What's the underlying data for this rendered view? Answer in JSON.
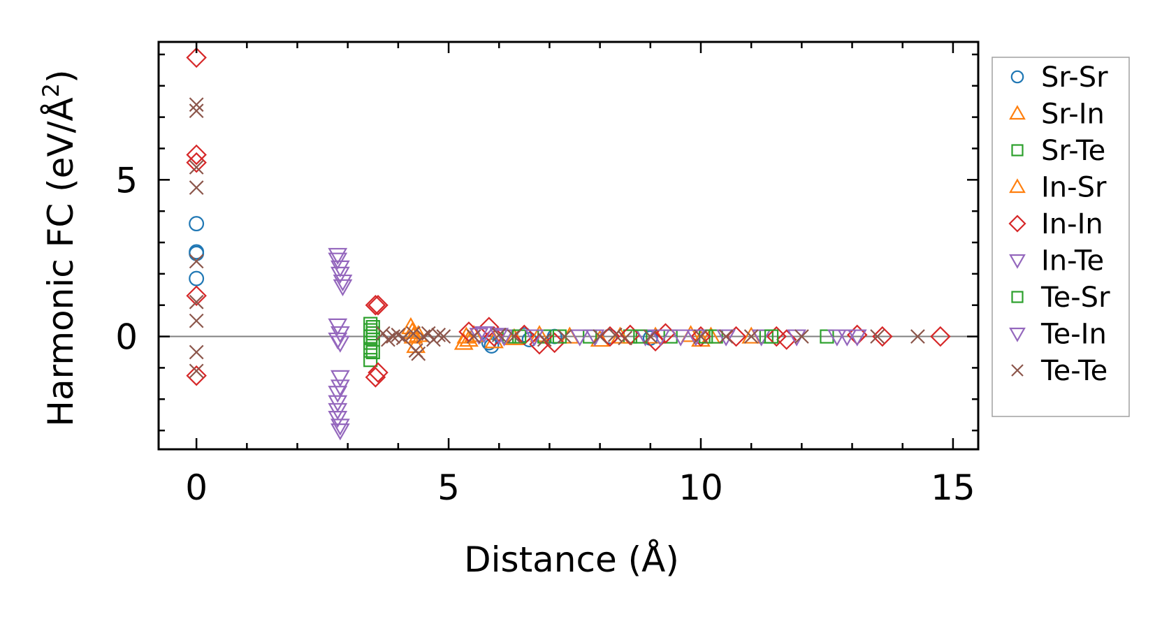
{
  "chart_data": {
    "type": "scatter",
    "xlabel": "Distance (Å)",
    "ylabel_main": "Harmonic FC (eV/Å",
    "ylabel_sup": "2",
    "ylabel_end": ")",
    "xlim": [
      -0.75,
      15.5
    ],
    "ylim": [
      -3.6,
      9.4
    ],
    "xticks": [
      0,
      5,
      10,
      15
    ],
    "xtick_labels": [
      "0",
      "5",
      "10",
      "15"
    ],
    "yticks": [
      0,
      5
    ],
    "ytick_labels": [
      "0",
      "5"
    ],
    "x_minor_step": 1,
    "y_minor_step": 1,
    "zero_line": 0,
    "legend_position": "right",
    "series": [
      {
        "name": "Sr-Sr",
        "marker": "circle",
        "color": "#1f77b4",
        "points": [
          [
            0,
            3.6
          ],
          [
            0,
            2.7
          ],
          [
            0,
            1.85
          ],
          [
            0,
            2.65
          ],
          [
            5.85,
            -0.3
          ],
          [
            5.8,
            -0.2
          ],
          [
            6.5,
            0.05
          ],
          [
            6.6,
            -0.1
          ],
          [
            7.1,
            0.0
          ],
          [
            8.2,
            0.0
          ],
          [
            9.0,
            -0.05
          ]
        ]
      },
      {
        "name": "Sr-In",
        "marker": "triangle-up",
        "color": "#ff7f0e",
        "points": [
          [
            4.25,
            0.3
          ],
          [
            4.3,
            0.0
          ],
          [
            4.35,
            -0.3
          ],
          [
            5.3,
            -0.2
          ],
          [
            5.35,
            0.0
          ],
          [
            5.4,
            -0.1
          ],
          [
            5.9,
            -0.15
          ],
          [
            6.8,
            0.05
          ],
          [
            8.0,
            -0.1
          ],
          [
            9.1,
            0.0
          ],
          [
            10.0,
            -0.1
          ],
          [
            10.2,
            0.0
          ]
        ]
      },
      {
        "name": "Sr-Te",
        "marker": "square",
        "color": "#2ca02c",
        "points": [
          [
            3.45,
            0.4
          ],
          [
            3.45,
            0.2
          ],
          [
            3.45,
            0.0
          ],
          [
            3.45,
            -0.2
          ],
          [
            3.45,
            -0.45
          ],
          [
            3.45,
            -0.75
          ],
          [
            6.2,
            0.0
          ],
          [
            6.9,
            0.0
          ],
          [
            7.8,
            0.0
          ],
          [
            8.6,
            0.0
          ],
          [
            9.4,
            0.0
          ],
          [
            10.3,
            0.0
          ],
          [
            11.3,
            0.0
          ],
          [
            12.5,
            0.0
          ]
        ]
      },
      {
        "name": "In-Sr",
        "marker": "triangle-up",
        "color": "#ff7f0e",
        "points": [
          [
            4.28,
            0.15
          ],
          [
            4.4,
            0.05
          ],
          [
            5.5,
            0.05
          ],
          [
            6.3,
            -0.05
          ],
          [
            7.4,
            0.0
          ],
          [
            8.4,
            0.0
          ],
          [
            9.8,
            0.05
          ],
          [
            11.0,
            0.0
          ]
        ]
      },
      {
        "name": "In-In",
        "marker": "diamond",
        "color": "#d62728",
        "points": [
          [
            0,
            8.9
          ],
          [
            0,
            5.8
          ],
          [
            0,
            5.55
          ],
          [
            0,
            1.3
          ],
          [
            0,
            -1.25
          ],
          [
            3.55,
            1.0
          ],
          [
            3.6,
            1.0
          ],
          [
            3.55,
            -1.3
          ],
          [
            3.6,
            -1.15
          ],
          [
            5.4,
            0.15
          ],
          [
            5.8,
            0.3
          ],
          [
            5.9,
            0.0
          ],
          [
            6.5,
            0.05
          ],
          [
            6.8,
            -0.25
          ],
          [
            7.1,
            -0.2
          ],
          [
            8.2,
            0.0
          ],
          [
            8.6,
            0.05
          ],
          [
            9.1,
            -0.15
          ],
          [
            9.3,
            0.1
          ],
          [
            10.0,
            0.0
          ],
          [
            10.7,
            0.0
          ],
          [
            11.5,
            0.0
          ],
          [
            11.7,
            -0.1
          ],
          [
            13.1,
            0.05
          ],
          [
            13.6,
            0.0
          ],
          [
            14.75,
            0.0
          ]
        ]
      },
      {
        "name": "In-Te",
        "marker": "triangle-down",
        "color": "#9467bd",
        "points": [
          [
            2.8,
            2.6
          ],
          [
            2.8,
            2.45
          ],
          [
            2.85,
            2.2
          ],
          [
            2.85,
            2.0
          ],
          [
            2.9,
            1.75
          ],
          [
            2.9,
            1.6
          ],
          [
            2.8,
            0.35
          ],
          [
            2.85,
            0.1
          ],
          [
            2.8,
            -0.1
          ],
          [
            2.85,
            -0.2
          ],
          [
            5.7,
            0.1
          ],
          [
            6.1,
            0.0
          ],
          [
            7.6,
            0.0
          ],
          [
            8.9,
            0.0
          ],
          [
            9.6,
            0.0
          ],
          [
            11.2,
            0.0
          ],
          [
            12.7,
            0.0
          ],
          [
            13.1,
            0.0
          ]
        ]
      },
      {
        "name": "Te-Sr",
        "marker": "square",
        "color": "#2ca02c",
        "points": [
          [
            3.5,
            0.3
          ],
          [
            3.5,
            0.1
          ],
          [
            3.5,
            -0.1
          ],
          [
            3.5,
            -0.5
          ],
          [
            6.4,
            0.0
          ],
          [
            7.2,
            0.0
          ],
          [
            8.8,
            0.0
          ],
          [
            10.1,
            0.0
          ],
          [
            11.4,
            0.0
          ]
        ]
      },
      {
        "name": "Te-In",
        "marker": "triangle-down",
        "color": "#9467bd",
        "points": [
          [
            2.85,
            -1.3
          ],
          [
            2.85,
            -1.6
          ],
          [
            2.8,
            -1.8
          ],
          [
            2.8,
            -2.1
          ],
          [
            2.8,
            -2.35
          ],
          [
            2.8,
            -2.6
          ],
          [
            2.85,
            -2.85
          ],
          [
            2.85,
            -3.0
          ],
          [
            5.6,
            0.05
          ],
          [
            6.0,
            0.05
          ],
          [
            6.7,
            0.0
          ],
          [
            7.9,
            0.0
          ],
          [
            9.2,
            0.0
          ],
          [
            9.9,
            0.0
          ],
          [
            10.5,
            0.0
          ],
          [
            11.9,
            0.0
          ],
          [
            12.9,
            0.0
          ]
        ]
      },
      {
        "name": "Te-Te",
        "marker": "x",
        "color": "#8c564b",
        "points": [
          [
            0,
            7.4
          ],
          [
            0,
            7.2
          ],
          [
            0,
            5.4
          ],
          [
            0,
            4.75
          ],
          [
            0,
            2.4
          ],
          [
            0,
            1.1
          ],
          [
            0,
            0.5
          ],
          [
            0,
            -0.5
          ],
          [
            0,
            -1.1
          ],
          [
            3.7,
            0.1
          ],
          [
            3.8,
            -0.1
          ],
          [
            3.9,
            0.0
          ],
          [
            4.0,
            0.05
          ],
          [
            4.1,
            -0.05
          ],
          [
            4.3,
            0.1
          ],
          [
            4.35,
            -0.45
          ],
          [
            4.4,
            -0.55
          ],
          [
            4.5,
            0.0
          ],
          [
            4.6,
            0.1
          ],
          [
            4.7,
            -0.1
          ],
          [
            4.8,
            0.05
          ],
          [
            4.9,
            0.0
          ],
          [
            5.5,
            0.0
          ],
          [
            6.0,
            0.05
          ],
          [
            6.3,
            0.0
          ],
          [
            6.9,
            -0.1
          ],
          [
            7.3,
            0.0
          ],
          [
            8.0,
            0.0
          ],
          [
            8.3,
            0.05
          ],
          [
            8.5,
            -0.05
          ],
          [
            9.0,
            0.0
          ],
          [
            10.0,
            0.0
          ],
          [
            10.5,
            0.0
          ],
          [
            11.0,
            0.0
          ],
          [
            12.0,
            0.0
          ],
          [
            13.5,
            0.0
          ],
          [
            14.3,
            0.0
          ]
        ]
      }
    ]
  }
}
